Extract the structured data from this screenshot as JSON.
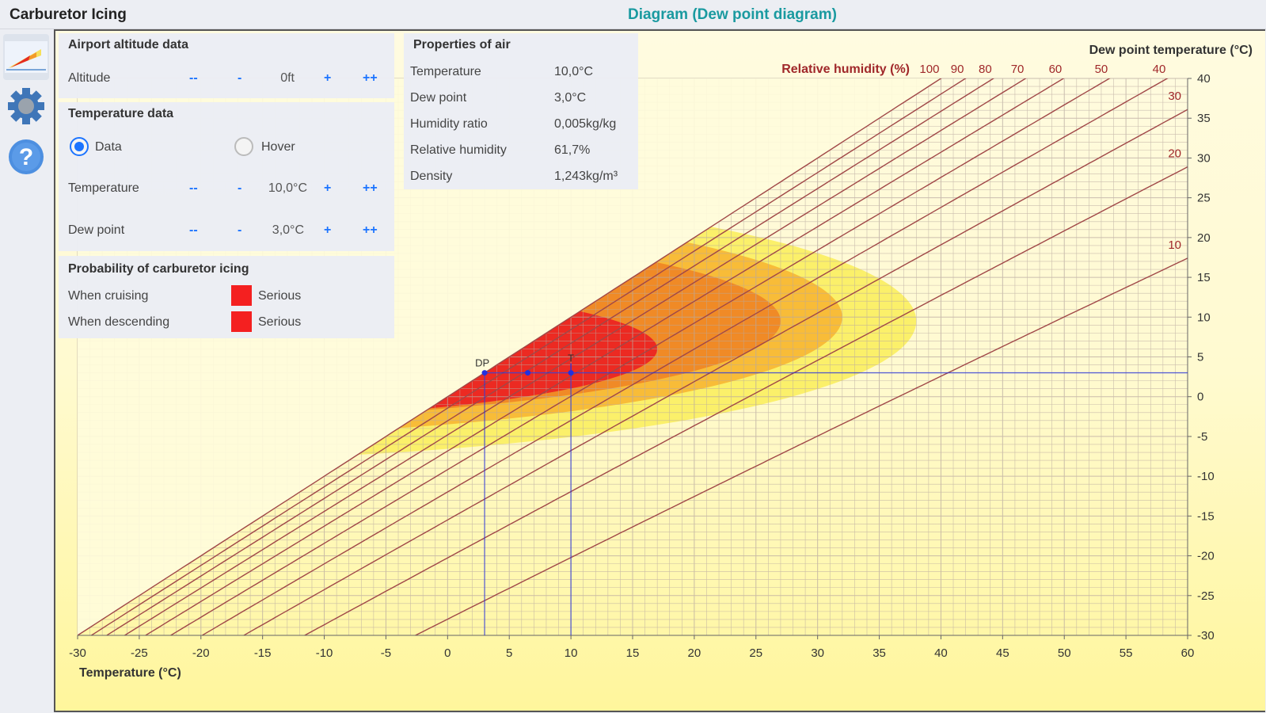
{
  "app": {
    "title": "Carburetor Icing",
    "view_title": "Diagram (Dew point diagram)"
  },
  "sidebar": {
    "icons": [
      "diagram-icon",
      "gear-icon",
      "help-icon"
    ]
  },
  "altitude_panel": {
    "title": "Airport altitude data",
    "label": "Altitude",
    "value": "0ft",
    "dec_big": "--",
    "dec": "-",
    "inc": "+",
    "inc_big": "++"
  },
  "temperature_panel": {
    "title": "Temperature data",
    "mode_data": "Data",
    "mode_hover": "Hover",
    "selected_mode": "Data",
    "temperature_label": "Temperature",
    "temperature_value": "10,0°C",
    "dewpoint_label": "Dew point",
    "dewpoint_value": "3,0°C",
    "dec_big": "--",
    "dec": "-",
    "inc": "+",
    "inc_big": "++"
  },
  "probability_panel": {
    "title": "Probability of carburetor icing",
    "cruising_label": "When cruising",
    "cruising_value": "Serious",
    "descending_label": "When descending",
    "descending_value": "Serious",
    "severity_color": "#f42020"
  },
  "properties_panel": {
    "title": "Properties of air",
    "rows": [
      {
        "label": "Temperature",
        "value": "10,0°C"
      },
      {
        "label": "Dew point",
        "value": "3,0°C"
      },
      {
        "label": "Humidity ratio",
        "value": "0,005kg/kg"
      },
      {
        "label": "Relative humidity",
        "value": "61,7%"
      },
      {
        "label": "Density",
        "value": "1,243kg/m³"
      }
    ]
  },
  "chart_data": {
    "type": "dew point diagram",
    "xlabel": "Temperature (°C)",
    "ylabel": "Dew point temperature (°C)",
    "rh_title": "Relative humidity (%)",
    "xlim": [
      -30,
      60
    ],
    "ylim": [
      -30,
      40
    ],
    "x_ticks": [
      -30,
      -25,
      -20,
      -15,
      -10,
      -5,
      0,
      5,
      10,
      15,
      20,
      25,
      30,
      35,
      40,
      45,
      50,
      55,
      60
    ],
    "y_ticks": [
      40,
      35,
      30,
      25,
      20,
      15,
      10,
      5,
      0,
      -5,
      -10,
      -15,
      -20,
      -25,
      -30
    ],
    "rh_lines": [
      100,
      90,
      80,
      70,
      60,
      50,
      40,
      30,
      20,
      10
    ],
    "rh_top_labels": [
      100,
      90,
      80,
      70,
      60,
      50,
      40
    ],
    "rh_side_labels": [
      30,
      20,
      10
    ],
    "grid": true,
    "icing_zones": [
      {
        "name": "light",
        "color": "#fbf06a",
        "max_temp": 38,
        "dew_range": [
          -8,
          27
        ]
      },
      {
        "name": "moderate",
        "color": "#f8bc38",
        "max_temp": 32,
        "dew_range": [
          -5,
          25
        ]
      },
      {
        "name": "serious",
        "color": "#f08a26",
        "max_temp": 27,
        "dew_range": [
          -3,
          22
        ]
      },
      {
        "name": "serious-descent",
        "color": "#ec2a22",
        "max_temp": 17,
        "dew_range": [
          -3,
          15
        ]
      }
    ],
    "marker": {
      "temperature": 10,
      "dew_point": 3,
      "label_dp": "DP",
      "label_t": "T"
    },
    "line_color": "#a04848",
    "marker_color": "#2230e0"
  }
}
